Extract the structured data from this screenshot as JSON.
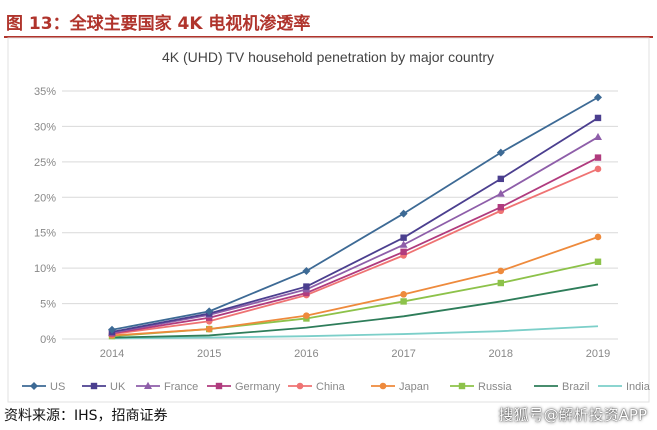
{
  "figure": {
    "title": "图 13：全球主要国家 4K 电视机渗透率",
    "source": "资料来源：IHS，招商证券",
    "watermark": "搜狐号@解析投资APP"
  },
  "chart_data": {
    "type": "line",
    "title": "4K (UHD) TV household penetration by major country",
    "x": [
      2014,
      2015,
      2016,
      2017,
      2018,
      2019
    ],
    "ylim": [
      0,
      35
    ],
    "yticks": [
      "0%",
      "5%",
      "10%",
      "15%",
      "20%",
      "25%",
      "30%",
      "35%"
    ],
    "grid": true,
    "legend_position": "bottom",
    "series": [
      {
        "name": "US",
        "color": "#3d6a95",
        "marker": "diamond",
        "values": [
          1.3,
          3.9,
          9.6,
          17.7,
          26.3,
          34.1
        ]
      },
      {
        "name": "UK",
        "color": "#4b3f8f",
        "marker": "square",
        "values": [
          1.0,
          3.6,
          7.4,
          14.3,
          22.6,
          31.2
        ]
      },
      {
        "name": "France",
        "color": "#8e5ea9",
        "marker": "triangle",
        "values": [
          0.9,
          3.4,
          7.0,
          13.3,
          20.5,
          28.5
        ]
      },
      {
        "name": "Germany",
        "color": "#b03b7e",
        "marker": "square",
        "values": [
          0.8,
          3.0,
          6.5,
          12.3,
          18.6,
          25.6
        ]
      },
      {
        "name": "China",
        "color": "#ef7373",
        "marker": "circle",
        "values": [
          0.7,
          2.5,
          6.2,
          11.8,
          18.1,
          24.0
        ]
      },
      {
        "name": "Japan",
        "color": "#ee8a3c",
        "marker": "circle",
        "values": [
          0.5,
          1.4,
          3.3,
          6.3,
          9.6,
          14.4
        ]
      },
      {
        "name": "Russia",
        "color": "#8dc24a",
        "marker": "square",
        "values": [
          0.4,
          1.4,
          2.9,
          5.3,
          7.9,
          10.9
        ]
      },
      {
        "name": "Brazil",
        "color": "#2e7d5a",
        "marker": "none",
        "values": [
          0.2,
          0.5,
          1.6,
          3.2,
          5.3,
          7.7
        ]
      },
      {
        "name": "India",
        "color": "#7ccfc9",
        "marker": "none",
        "values": [
          0.1,
          0.2,
          0.4,
          0.7,
          1.1,
          1.8
        ]
      }
    ]
  }
}
